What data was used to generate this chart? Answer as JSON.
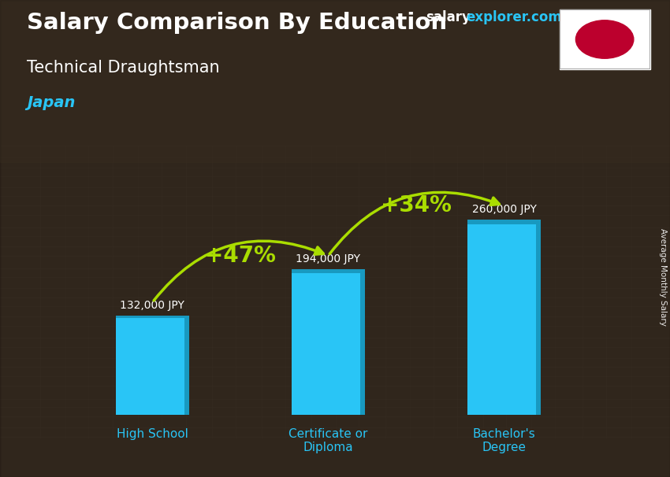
{
  "title": "Salary Comparison By Education",
  "subtitle": "Technical Draughtsman",
  "country": "Japan",
  "categories": [
    "High School",
    "Certificate or\nDiploma",
    "Bachelor's\nDegree"
  ],
  "values": [
    132000,
    194000,
    260000
  ],
  "value_labels": [
    "132,000 JPY",
    "194,000 JPY",
    "260,000 JPY"
  ],
  "bar_color_light": "#29C5F6",
  "bar_color_dark": "#1899C0",
  "text_color_white": "#ffffff",
  "text_color_cyan": "#29C5F6",
  "text_color_green": "#aadd00",
  "arrow_color": "#aadd00",
  "pct_labels": [
    "+47%",
    "+34%"
  ],
  "watermark_salary": "salary",
  "watermark_rest": "explorer.com",
  "side_label": "Average Monthly Salary",
  "ylim": [
    0,
    330000
  ],
  "flag_red": "#BC002D",
  "bg_dark": "#2a2318",
  "bg_mid": "#4a3c28"
}
